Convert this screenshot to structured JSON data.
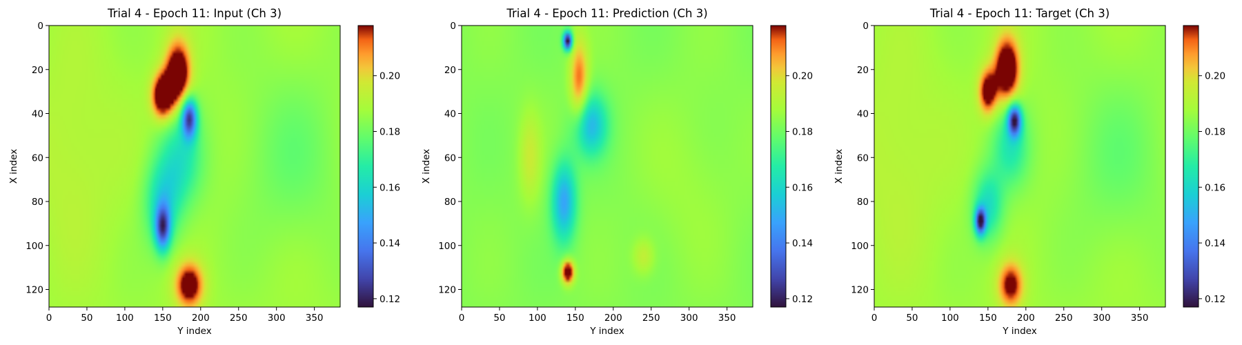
{
  "chart_data": [
    {
      "type": "heatmap",
      "title": "Trial 4 - Epoch 11: Input (Ch 3)",
      "xlabel": "Y index",
      "ylabel": "X index",
      "xlim": [
        0,
        384
      ],
      "ylim": [
        128,
        0
      ],
      "x_ticks": [
        0,
        50,
        100,
        150,
        200,
        250,
        300,
        350
      ],
      "y_ticks": [
        0,
        20,
        40,
        60,
        80,
        100,
        120
      ],
      "colormap": "turbo",
      "colorbar_range": [
        0.117,
        0.218
      ],
      "colorbar_ticks": [
        0.12,
        0.14,
        0.16,
        0.18,
        0.2
      ],
      "colorbar_tick_labels": [
        "0.12",
        "0.14",
        "0.16",
        "0.18",
        "0.20"
      ],
      "background_value": 0.187,
      "features": [
        {
          "x": 170,
          "y": 22,
          "sx": 16,
          "sy": 14,
          "v": 0.05
        },
        {
          "x": 150,
          "y": 32,
          "sx": 14,
          "sy": 10,
          "v": 0.05
        },
        {
          "x": 185,
          "y": 118,
          "sx": 18,
          "sy": 10,
          "v": 0.04
        },
        {
          "x": 185,
          "y": 42,
          "sx": 10,
          "sy": 9,
          "v": -0.055
        },
        {
          "x": 175,
          "y": 60,
          "sx": 28,
          "sy": 22,
          "v": -0.02
        },
        {
          "x": 150,
          "y": 92,
          "sx": 10,
          "sy": 10,
          "v": -0.05
        },
        {
          "x": 150,
          "y": 80,
          "sx": 24,
          "sy": 20,
          "v": -0.025
        },
        {
          "x": 30,
          "y": 60,
          "sx": 60,
          "sy": 50,
          "v": 0.006
        },
        {
          "x": 320,
          "y": 60,
          "sx": 70,
          "sy": 40,
          "v": -0.008
        }
      ]
    },
    {
      "type": "heatmap",
      "title": "Trial 4 - Epoch 11: Prediction (Ch 3)",
      "xlabel": "Y index",
      "ylabel": "X index",
      "xlim": [
        0,
        384
      ],
      "ylim": [
        128,
        0
      ],
      "x_ticks": [
        0,
        50,
        100,
        150,
        200,
        250,
        300,
        350
      ],
      "y_ticks": [
        0,
        20,
        40,
        60,
        80,
        100,
        120
      ],
      "colormap": "turbo",
      "colorbar_range": [
        0.117,
        0.218
      ],
      "colorbar_ticks": [
        0.12,
        0.14,
        0.16,
        0.18,
        0.2
      ],
      "colorbar_tick_labels": [
        "0.12",
        "0.14",
        "0.16",
        "0.18",
        "0.20"
      ],
      "background_value": 0.183,
      "features": [
        {
          "x": 140,
          "y": 7,
          "sx": 6,
          "sy": 4,
          "v": -0.07
        },
        {
          "x": 155,
          "y": 25,
          "sx": 12,
          "sy": 18,
          "v": 0.03
        },
        {
          "x": 170,
          "y": 45,
          "sx": 22,
          "sy": 14,
          "v": -0.03
        },
        {
          "x": 135,
          "y": 80,
          "sx": 16,
          "sy": 18,
          "v": -0.035
        },
        {
          "x": 140,
          "y": 112,
          "sx": 8,
          "sy": 5,
          "v": 0.05
        },
        {
          "x": 90,
          "y": 60,
          "sx": 14,
          "sy": 20,
          "v": 0.012
        },
        {
          "x": 240,
          "y": 105,
          "sx": 14,
          "sy": 8,
          "v": 0.012
        },
        {
          "x": 300,
          "y": 70,
          "sx": 60,
          "sy": 40,
          "v": 0.004
        }
      ]
    },
    {
      "type": "heatmap",
      "title": "Trial 4 - Epoch 11: Target (Ch 3)",
      "xlabel": "Y index",
      "ylabel": "X index",
      "xlim": [
        0,
        384
      ],
      "ylim": [
        128,
        0
      ],
      "x_ticks": [
        0,
        50,
        100,
        150,
        200,
        250,
        300,
        350
      ],
      "y_ticks": [
        0,
        20,
        40,
        60,
        80,
        100,
        120
      ],
      "colormap": "turbo",
      "colorbar_range": [
        0.117,
        0.218
      ],
      "colorbar_ticks": [
        0.12,
        0.14,
        0.16,
        0.18,
        0.2
      ],
      "colorbar_tick_labels": [
        "0.12",
        "0.14",
        "0.16",
        "0.18",
        "0.20"
      ],
      "background_value": 0.187,
      "features": [
        {
          "x": 175,
          "y": 20,
          "sx": 16,
          "sy": 14,
          "v": 0.05
        },
        {
          "x": 150,
          "y": 30,
          "sx": 12,
          "sy": 10,
          "v": 0.04
        },
        {
          "x": 180,
          "y": 118,
          "sx": 16,
          "sy": 10,
          "v": 0.035
        },
        {
          "x": 185,
          "y": 43,
          "sx": 9,
          "sy": 7,
          "v": -0.06
        },
        {
          "x": 180,
          "y": 55,
          "sx": 24,
          "sy": 18,
          "v": -0.02
        },
        {
          "x": 140,
          "y": 89,
          "sx": 7,
          "sy": 6,
          "v": -0.06
        },
        {
          "x": 150,
          "y": 82,
          "sx": 20,
          "sy": 16,
          "v": -0.025
        },
        {
          "x": 30,
          "y": 60,
          "sx": 60,
          "sy": 50,
          "v": 0.006
        },
        {
          "x": 320,
          "y": 60,
          "sx": 70,
          "sy": 40,
          "v": -0.008
        }
      ]
    }
  ]
}
